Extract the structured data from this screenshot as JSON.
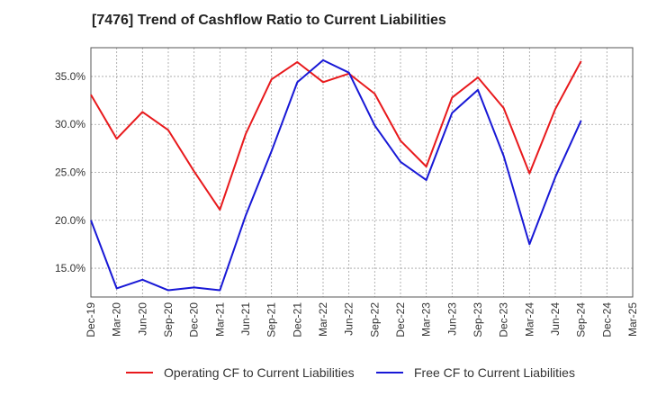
{
  "chart_data": {
    "type": "line",
    "title": "[7476]  Trend of Cashflow Ratio to Current Liabilities",
    "xlabel": "",
    "ylabel": "",
    "categories": [
      "Dec-19",
      "Mar-20",
      "Jun-20",
      "Sep-20",
      "Dec-20",
      "Mar-21",
      "Jun-21",
      "Sep-21",
      "Dec-21",
      "Mar-22",
      "Jun-22",
      "Sep-22",
      "Dec-22",
      "Mar-23",
      "Jun-23",
      "Sep-23",
      "Dec-23",
      "Mar-24",
      "Jun-24",
      "Sep-24",
      "Dec-24",
      "Mar-25"
    ],
    "x_tick_labels": [
      "Dec-19",
      "Mar-20",
      "Jun-20",
      "Sep-20",
      "Dec-20",
      "Mar-21",
      "Jun-21",
      "Sep-21",
      "Dec-21",
      "Mar-22",
      "Jun-22",
      "Sep-22",
      "Dec-22",
      "Mar-23",
      "Jun-23",
      "Sep-23",
      "Dec-23",
      "Mar-24",
      "Jun-24",
      "Sep-24",
      "Dec-24",
      "Mar-25"
    ],
    "y_ticks": [
      15.0,
      20.0,
      25.0,
      30.0,
      35.0
    ],
    "y_tick_labels": [
      "15.0%",
      "20.0%",
      "25.0%",
      "30.0%",
      "35.0%"
    ],
    "ylim": [
      12.0,
      38.0
    ],
    "grid": true,
    "legend_position": "bottom",
    "series": [
      {
        "name": "Operating CF to Current Liabilities",
        "color": "#e8191c",
        "values": [
          33.1,
          28.5,
          31.3,
          29.4,
          25.1,
          21.1,
          29.0,
          34.7,
          36.5,
          34.4,
          35.3,
          33.2,
          28.3,
          25.6,
          32.8,
          34.9,
          31.7,
          24.9,
          31.6,
          36.6,
          null,
          null
        ]
      },
      {
        "name": "Free CF to Current Liabilities",
        "color": "#1818d6",
        "values": [
          20.0,
          12.9,
          13.8,
          12.7,
          13.0,
          12.7,
          20.5,
          27.2,
          34.4,
          36.7,
          35.4,
          29.9,
          26.1,
          24.2,
          31.2,
          33.6,
          26.7,
          17.5,
          24.5,
          30.4,
          null,
          null
        ]
      }
    ]
  }
}
